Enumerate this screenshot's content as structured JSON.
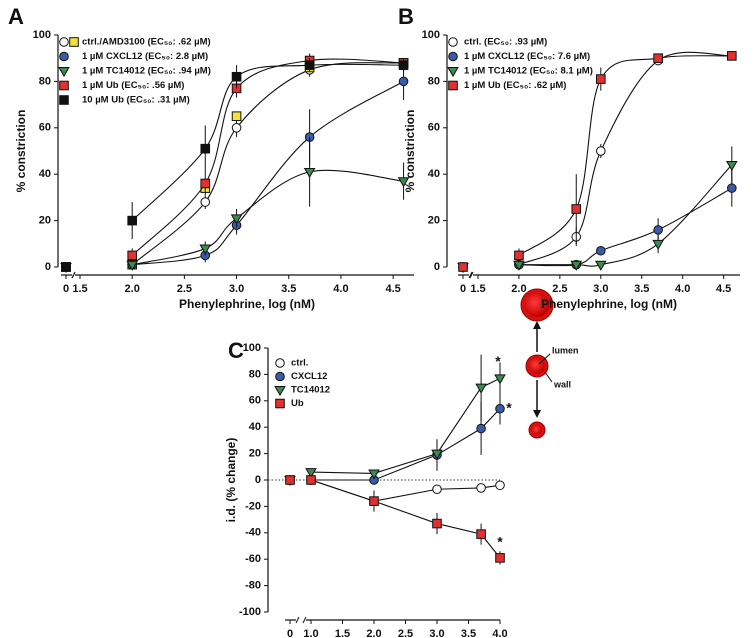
{
  "chart_data": [
    {
      "type": "line",
      "panel": "A",
      "xlabel": "Phenylephrine, log (nM)",
      "ylabel": "% constriction",
      "curve": "smooth",
      "x": [
        0,
        2,
        2.7,
        3,
        3.7,
        4.6
      ],
      "xlim": [
        1.5,
        4.7
      ],
      "xticks": [
        0,
        {
          "value": 1.5,
          "label": "1.5"
        },
        {
          "value": 2,
          "label": "2.0"
        },
        {
          "value": 2.5,
          "label": "2.5"
        },
        {
          "value": 3,
          "label": "3.0"
        },
        {
          "value": 3.5,
          "label": "3.5"
        },
        {
          "value": 4,
          "label": "4.0"
        },
        {
          "value": 4.5,
          "label": "4.5"
        }
      ],
      "ylim": [
        0,
        100
      ],
      "yticks": [
        0,
        20,
        40,
        60,
        80,
        100
      ],
      "series": [
        {
          "name": "ctrl./AMD3100 (EC₅₀: .62 µM)",
          "color": "#ffffff",
          "marker": "circle",
          "values": [
            0,
            1,
            28,
            60,
            85,
            88
          ],
          "errors": [
            1,
            1,
            3,
            4,
            3,
            2
          ],
          "alt_marker": "square",
          "alt_color": "#f2e33a",
          "alt_values": [
            0,
            1,
            34,
            65,
            86,
            88
          ]
        },
        {
          "name": "1 µM CXCL12 (EC₅₀: 2.8 µM)",
          "color": "#3a5ba8",
          "marker": "circle",
          "values": [
            0,
            1,
            5,
            18,
            56,
            80
          ],
          "errors": [
            1,
            1,
            3,
            4,
            12,
            8
          ]
        },
        {
          "name": "1 µM TC14012 (EC₅₀: .94 µM)",
          "color": "#3d8a4e",
          "marker": "triangle",
          "values": [
            0,
            1,
            8,
            21,
            41,
            37
          ],
          "errors": [
            1,
            1,
            3,
            4,
            15,
            8
          ]
        },
        {
          "name": "1 µM Ub (EC₅₀: .56 µM)",
          "color": "#e03030",
          "marker": "square",
          "values": [
            0,
            5,
            36,
            77,
            89,
            88
          ],
          "errors": [
            1,
            3,
            5,
            4,
            3,
            2
          ]
        },
        {
          "name": "10 µM Ub (EC₅₀: .31 µM)",
          "color": "#111111",
          "marker": "square",
          "values": [
            0,
            20,
            51,
            82,
            87,
            87
          ],
          "errors": [
            1,
            8,
            10,
            5,
            3,
            3
          ]
        }
      ]
    },
    {
      "type": "line",
      "panel": "B",
      "xlabel": "Phenylephrine, log (nM)",
      "ylabel": "% constriction",
      "curve": "smooth",
      "x": [
        0,
        2,
        2.7,
        3,
        3.7,
        4.6
      ],
      "xlim": [
        1.5,
        4.7
      ],
      "xticks": [
        0,
        {
          "value": 1.5,
          "label": "1.5"
        },
        {
          "value": 2,
          "label": "2.0"
        },
        {
          "value": 2.5,
          "label": "2.5"
        },
        {
          "value": 3,
          "label": "3.0"
        },
        {
          "value": 3.5,
          "label": "3.5"
        },
        {
          "value": 4,
          "label": "4.0"
        },
        {
          "value": 4.5,
          "label": "4.5"
        }
      ],
      "ylim": [
        0,
        100
      ],
      "yticks": [
        0,
        20,
        40,
        60,
        80,
        100
      ],
      "series": [
        {
          "name": "ctrl. (EC₅₀: .93 µM)",
          "color": "#ffffff",
          "marker": "circle",
          "values": [
            0,
            1,
            13,
            50,
            89,
            91
          ],
          "errors": [
            1,
            1,
            4,
            3,
            2,
            2
          ]
        },
        {
          "name": "1 µM CXCL12 (EC₅₀: 7.6 µM)",
          "color": "#3a5ba8",
          "marker": "circle",
          "values": [
            0,
            1,
            1,
            7,
            16,
            34
          ],
          "errors": [
            1,
            1,
            1,
            2,
            5,
            8
          ]
        },
        {
          "name": "1 µM TC14012 (EC₅₀: 8.1 µM)",
          "color": "#3d8a4e",
          "marker": "triangle",
          "values": [
            0,
            1,
            1,
            1,
            10,
            44
          ],
          "errors": [
            1,
            1,
            1,
            1,
            4,
            8
          ]
        },
        {
          "name": "1 µM Ub (EC₅₀: .62 µM)",
          "color": "#e03030",
          "marker": "square",
          "values": [
            0,
            5,
            25,
            81,
            90,
            91
          ],
          "errors": [
            1,
            3,
            15,
            5,
            2,
            2
          ]
        }
      ]
    },
    {
      "type": "line",
      "panel": "C",
      "xlabel": "log (nM)",
      "ylabel": "i.d. (% change)",
      "curve": "straight",
      "zero_line": true,
      "x": [
        0,
        1,
        2,
        3,
        3.7,
        4
      ],
      "xlim": [
        1,
        4
      ],
      "xticks": [
        0,
        {
          "value": 1,
          "label": "1.0"
        },
        {
          "value": 1.5,
          "label": "1.5"
        },
        {
          "value": 2,
          "label": "2.0"
        },
        {
          "value": 2.5,
          "label": "2.5"
        },
        {
          "value": 3,
          "label": "3.0"
        },
        {
          "value": 3.5,
          "label": "3.5"
        },
        {
          "value": 4,
          "label": "4.0"
        }
      ],
      "ylim": [
        -100,
        100
      ],
      "yticks": [
        -100,
        -80,
        -60,
        -40,
        -20,
        0,
        20,
        40,
        60,
        80,
        100
      ],
      "annotations": [
        "*",
        "*",
        "*"
      ],
      "series": [
        {
          "name": "ctrl.",
          "color": "#ffffff",
          "marker": "circle",
          "values": [
            0,
            0,
            -16,
            -7,
            -6,
            -4
          ],
          "errors": [
            1,
            2,
            8,
            3,
            3,
            3
          ]
        },
        {
          "name": "CXCL12",
          "color": "#3a5ba8",
          "marker": "circle",
          "values": [
            0,
            0,
            0,
            19,
            39,
            54
          ],
          "errors": [
            1,
            2,
            3,
            12,
            20,
            12
          ]
        },
        {
          "name": "TC14012",
          "color": "#3d8a4e",
          "marker": "triangle",
          "values": [
            0,
            6,
            5,
            20,
            70,
            77
          ],
          "errors": [
            1,
            2,
            3,
            10,
            25,
            12
          ]
        },
        {
          "name": "Ub",
          "color": "#e03030",
          "marker": "square",
          "values": [
            0,
            0,
            -16,
            -33,
            -41,
            -59
          ],
          "errors": [
            1,
            2,
            6,
            8,
            8,
            5
          ]
        }
      ]
    }
  ],
  "diagram": {
    "labels": [
      "lumen",
      "wall"
    ]
  }
}
